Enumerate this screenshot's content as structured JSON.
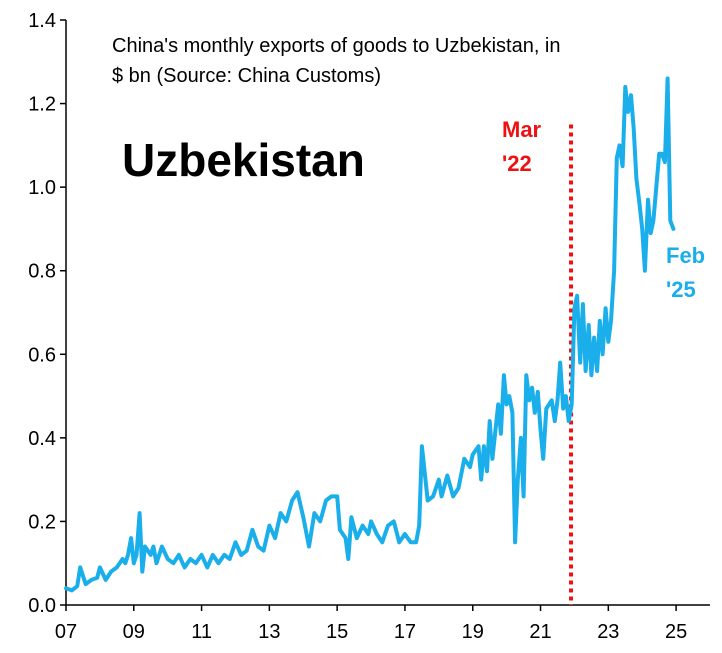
{
  "chart_data": {
    "type": "line",
    "title_line1": "China's monthly exports of goods to Uzbekistan, in",
    "title_line2": "$ bn (Source: China Customs)",
    "country_label": "Uzbekistan",
    "xlabel": "",
    "ylabel": "",
    "ylim": [
      0,
      1.4
    ],
    "xlim": [
      2007.0,
      2026.0
    ],
    "y_ticks": [
      "0.0",
      "0.2",
      "0.4",
      "0.6",
      "0.8",
      "1.0",
      "1.2",
      "1.4"
    ],
    "y_tick_values": [
      0,
      0.2,
      0.4,
      0.6,
      0.8,
      1.0,
      1.2,
      1.4
    ],
    "x_ticks": [
      "07",
      "09",
      "11",
      "13",
      "15",
      "17",
      "19",
      "21",
      "23",
      "25"
    ],
    "x_tick_values": [
      2007,
      2009,
      2011,
      2013,
      2015,
      2017,
      2019,
      2021,
      2023,
      2025
    ],
    "line_color": "#1aaeea",
    "marker": {
      "label_line1": "Mar",
      "label_line2": "'22",
      "x": 2021.9,
      "color": "#ee1111"
    },
    "end_label_line1": "Feb",
    "end_label_line2": "'25",
    "series": [
      {
        "name": "Exports to Uzbekistan",
        "points": [
          [
            2007.0,
            0.04
          ],
          [
            2007.17,
            0.035
          ],
          [
            2007.33,
            0.045
          ],
          [
            2007.42,
            0.09
          ],
          [
            2007.58,
            0.05
          ],
          [
            2007.75,
            0.06
          ],
          [
            2007.92,
            0.065
          ],
          [
            2008.0,
            0.09
          ],
          [
            2008.17,
            0.06
          ],
          [
            2008.33,
            0.08
          ],
          [
            2008.5,
            0.09
          ],
          [
            2008.67,
            0.11
          ],
          [
            2008.75,
            0.1
          ],
          [
            2008.83,
            0.12
          ],
          [
            2008.92,
            0.16
          ],
          [
            2009.0,
            0.1
          ],
          [
            2009.08,
            0.12
          ],
          [
            2009.17,
            0.22
          ],
          [
            2009.25,
            0.08
          ],
          [
            2009.33,
            0.14
          ],
          [
            2009.5,
            0.12
          ],
          [
            2009.58,
            0.14
          ],
          [
            2009.67,
            0.1
          ],
          [
            2009.83,
            0.14
          ],
          [
            2010.0,
            0.11
          ],
          [
            2010.17,
            0.1
          ],
          [
            2010.33,
            0.12
          ],
          [
            2010.5,
            0.09
          ],
          [
            2010.67,
            0.11
          ],
          [
            2010.83,
            0.1
          ],
          [
            2011.0,
            0.12
          ],
          [
            2011.17,
            0.09
          ],
          [
            2011.33,
            0.12
          ],
          [
            2011.5,
            0.1
          ],
          [
            2011.67,
            0.12
          ],
          [
            2011.83,
            0.11
          ],
          [
            2012.0,
            0.15
          ],
          [
            2012.17,
            0.12
          ],
          [
            2012.33,
            0.13
          ],
          [
            2012.5,
            0.18
          ],
          [
            2012.67,
            0.14
          ],
          [
            2012.83,
            0.13
          ],
          [
            2013.0,
            0.19
          ],
          [
            2013.17,
            0.16
          ],
          [
            2013.33,
            0.22
          ],
          [
            2013.5,
            0.2
          ],
          [
            2013.67,
            0.25
          ],
          [
            2013.83,
            0.27
          ],
          [
            2014.0,
            0.21
          ],
          [
            2014.17,
            0.14
          ],
          [
            2014.33,
            0.22
          ],
          [
            2014.5,
            0.2
          ],
          [
            2014.67,
            0.25
          ],
          [
            2014.83,
            0.26
          ],
          [
            2015.0,
            0.26
          ],
          [
            2015.08,
            0.18
          ],
          [
            2015.25,
            0.16
          ],
          [
            2015.33,
            0.11
          ],
          [
            2015.42,
            0.21
          ],
          [
            2015.58,
            0.16
          ],
          [
            2015.75,
            0.19
          ],
          [
            2015.92,
            0.17
          ],
          [
            2016.0,
            0.2
          ],
          [
            2016.17,
            0.17
          ],
          [
            2016.33,
            0.15
          ],
          [
            2016.5,
            0.19
          ],
          [
            2016.67,
            0.2
          ],
          [
            2016.83,
            0.15
          ],
          [
            2017.0,
            0.17
          ],
          [
            2017.17,
            0.15
          ],
          [
            2017.33,
            0.15
          ],
          [
            2017.42,
            0.19
          ],
          [
            2017.5,
            0.38
          ],
          [
            2017.67,
            0.25
          ],
          [
            2017.83,
            0.26
          ],
          [
            2018.0,
            0.3
          ],
          [
            2018.08,
            0.26
          ],
          [
            2018.25,
            0.31
          ],
          [
            2018.42,
            0.26
          ],
          [
            2018.58,
            0.28
          ],
          [
            2018.75,
            0.35
          ],
          [
            2018.92,
            0.33
          ],
          [
            2019.0,
            0.36
          ],
          [
            2019.17,
            0.38
          ],
          [
            2019.25,
            0.3
          ],
          [
            2019.33,
            0.38
          ],
          [
            2019.42,
            0.32
          ],
          [
            2019.5,
            0.44
          ],
          [
            2019.58,
            0.35
          ],
          [
            2019.75,
            0.48
          ],
          [
            2019.83,
            0.41
          ],
          [
            2019.92,
            0.55
          ],
          [
            2020.0,
            0.48
          ],
          [
            2020.08,
            0.5
          ],
          [
            2020.17,
            0.46
          ],
          [
            2020.25,
            0.15
          ],
          [
            2020.33,
            0.3
          ],
          [
            2020.42,
            0.4
          ],
          [
            2020.5,
            0.26
          ],
          [
            2020.58,
            0.55
          ],
          [
            2020.67,
            0.49
          ],
          [
            2020.75,
            0.52
          ],
          [
            2020.83,
            0.46
          ],
          [
            2020.92,
            0.51
          ],
          [
            2021.0,
            0.42
          ],
          [
            2021.08,
            0.35
          ],
          [
            2021.17,
            0.47
          ],
          [
            2021.33,
            0.49
          ],
          [
            2021.42,
            0.44
          ],
          [
            2021.5,
            0.49
          ],
          [
            2021.58,
            0.58
          ],
          [
            2021.67,
            0.47
          ],
          [
            2021.75,
            0.5
          ],
          [
            2021.83,
            0.44
          ],
          [
            2021.92,
            0.48
          ],
          [
            2022.0,
            0.71
          ],
          [
            2022.08,
            0.74
          ],
          [
            2022.17,
            0.58
          ],
          [
            2022.25,
            0.72
          ],
          [
            2022.33,
            0.56
          ],
          [
            2022.42,
            0.67
          ],
          [
            2022.5,
            0.55
          ],
          [
            2022.58,
            0.64
          ],
          [
            2022.67,
            0.56
          ],
          [
            2022.75,
            0.68
          ],
          [
            2022.83,
            0.6
          ],
          [
            2022.92,
            0.71
          ],
          [
            2023.0,
            0.63
          ],
          [
            2023.08,
            0.68
          ],
          [
            2023.17,
            0.8
          ],
          [
            2023.25,
            1.07
          ],
          [
            2023.33,
            1.1
          ],
          [
            2023.42,
            1.05
          ],
          [
            2023.5,
            1.24
          ],
          [
            2023.58,
            1.18
          ],
          [
            2023.67,
            1.22
          ],
          [
            2023.75,
            1.14
          ],
          [
            2023.83,
            1.02
          ],
          [
            2023.92,
            0.96
          ],
          [
            2024.0,
            0.9
          ],
          [
            2024.08,
            0.8
          ],
          [
            2024.17,
            0.97
          ],
          [
            2024.25,
            0.89
          ],
          [
            2024.33,
            0.92
          ],
          [
            2024.5,
            1.08
          ],
          [
            2024.58,
            1.08
          ],
          [
            2024.67,
            1.06
          ],
          [
            2024.75,
            1.26
          ],
          [
            2024.83,
            0.92
          ],
          [
            2024.92,
            0.9
          ]
        ]
      }
    ]
  }
}
